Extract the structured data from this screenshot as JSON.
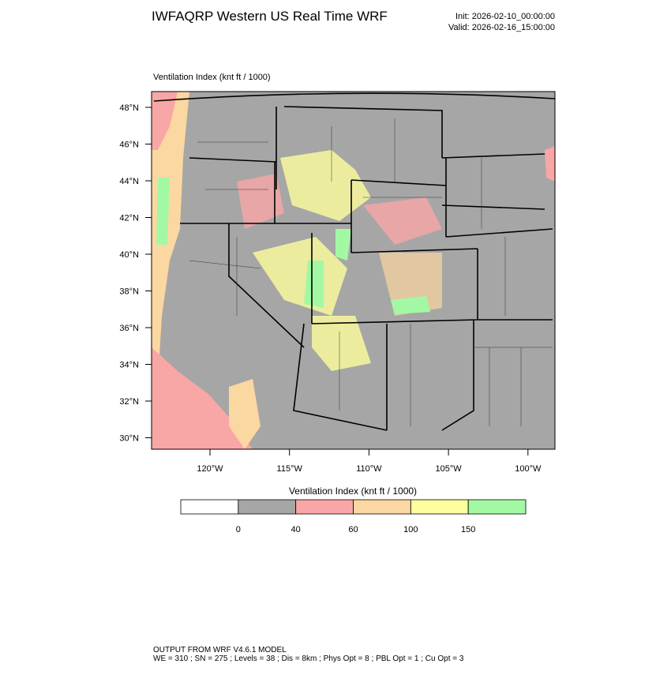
{
  "header": {
    "title": "IWFAQRP Western US Real Time WRF",
    "init": "Init: 2026-02-10_00:00:00",
    "valid": "Valid: 2026-02-16_15:00:00"
  },
  "map": {
    "title": "Ventilation Index   (knt ft / 1000)",
    "lat_labels": [
      "48°N",
      "46°N",
      "44°N",
      "42°N",
      "40°N",
      "38°N",
      "36°N",
      "34°N",
      "32°N",
      "30°N"
    ],
    "lon_labels": [
      "120°W",
      "115°W",
      "110°W",
      "105°W",
      "100°W"
    ]
  },
  "colorbar": {
    "title": "Ventilation Index   (knt ft / 1000)",
    "colors": [
      "#ffffff",
      "#a6a6a6",
      "#f9a6a6",
      "#fbd7a1",
      "#fefe9e",
      "#a3f9a3"
    ],
    "labels": [
      0,
      40,
      60,
      100,
      150
    ]
  },
  "footer": {
    "line1": "OUTPUT FROM WRF V4.6.1 MODEL",
    "line2": "WE = 310 ; SN = 275 ; Levels = 38 ; Dis = 8km ; Phys Opt = 8 ; PBL Opt = 1 ; Cu Opt = 3"
  }
}
